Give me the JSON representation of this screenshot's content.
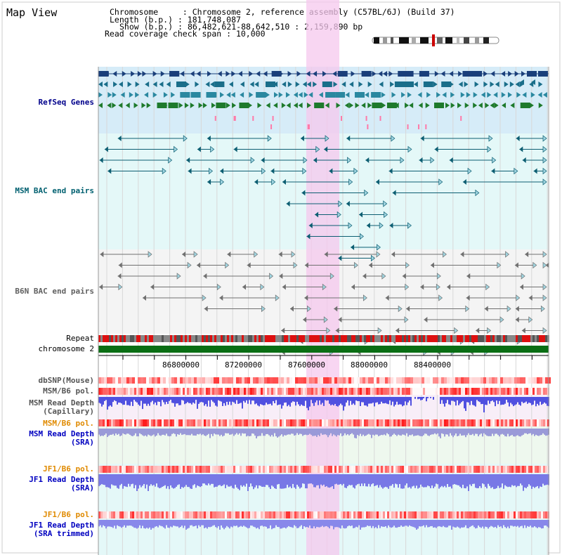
{
  "view_title": "Map View",
  "header": {
    "chromosome_key": "Chromosome",
    "chromosome_value": "Chromosome 2, reference assembly (C57BL/6J) (Build 37)",
    "length_key": "Length (b.p.)",
    "length_value": "181,748,087",
    "show_key": "Show (b.p.)",
    "show_value": "86,482,621-88,642,510 : 2,159,890 bp",
    "coverage_key": "Read coverage check span",
    "coverage_value": "10,000"
  },
  "tracks": {
    "refseq": "RefSeq Genes",
    "msm_bac": "MSM BAC end pairs",
    "b6n_bac": "B6N BAC end pairs",
    "repeat": "Repeat",
    "chromosome": "chromosome 2",
    "dbsnp": "dbSNP(Mouse)",
    "msm_b6_pol_cap": "MSM/B6 pol.",
    "msm_depth_cap_1": "MSM Read Depth",
    "msm_depth_cap_2": "(Capillary)",
    "msm_b6_pol_sra": "MSM/B6 pol.",
    "msm_depth_sra_1": "MSM Read Depth",
    "msm_depth_sra_2": "(SRA)",
    "jf1_b6_pol_1": "JF1/B6 pol.",
    "jf1_depth_sra_1": "JF1 Read Depth",
    "jf1_depth_sra_2": "(SRA)",
    "jf1_b6_pol_2": "JF1/B6 pol.",
    "jf1_depth_trim_1": "JF1 Read Depth",
    "jf1_depth_trim_2": "(SRA trimmed)"
  },
  "axis": {
    "ticks": [
      "86800000",
      "87200000",
      "87600000",
      "88000000",
      "88400000"
    ]
  },
  "colors": {
    "refseq_bg": "#d6ecf8",
    "msm_bg": "#e4f8f8",
    "b6n_bg": "#f4f4f4",
    "highlight": "#f6c8ee",
    "chromosome_bar": "#0a6e14",
    "msm_label": "#006070",
    "refseq_label": "#00008b",
    "b6n_label": "#606060",
    "orange_label": "#e08a00",
    "blue_label": "#0000c0",
    "msm_pair": "#0c5e72",
    "b6n_pair": "#707070"
  }
}
